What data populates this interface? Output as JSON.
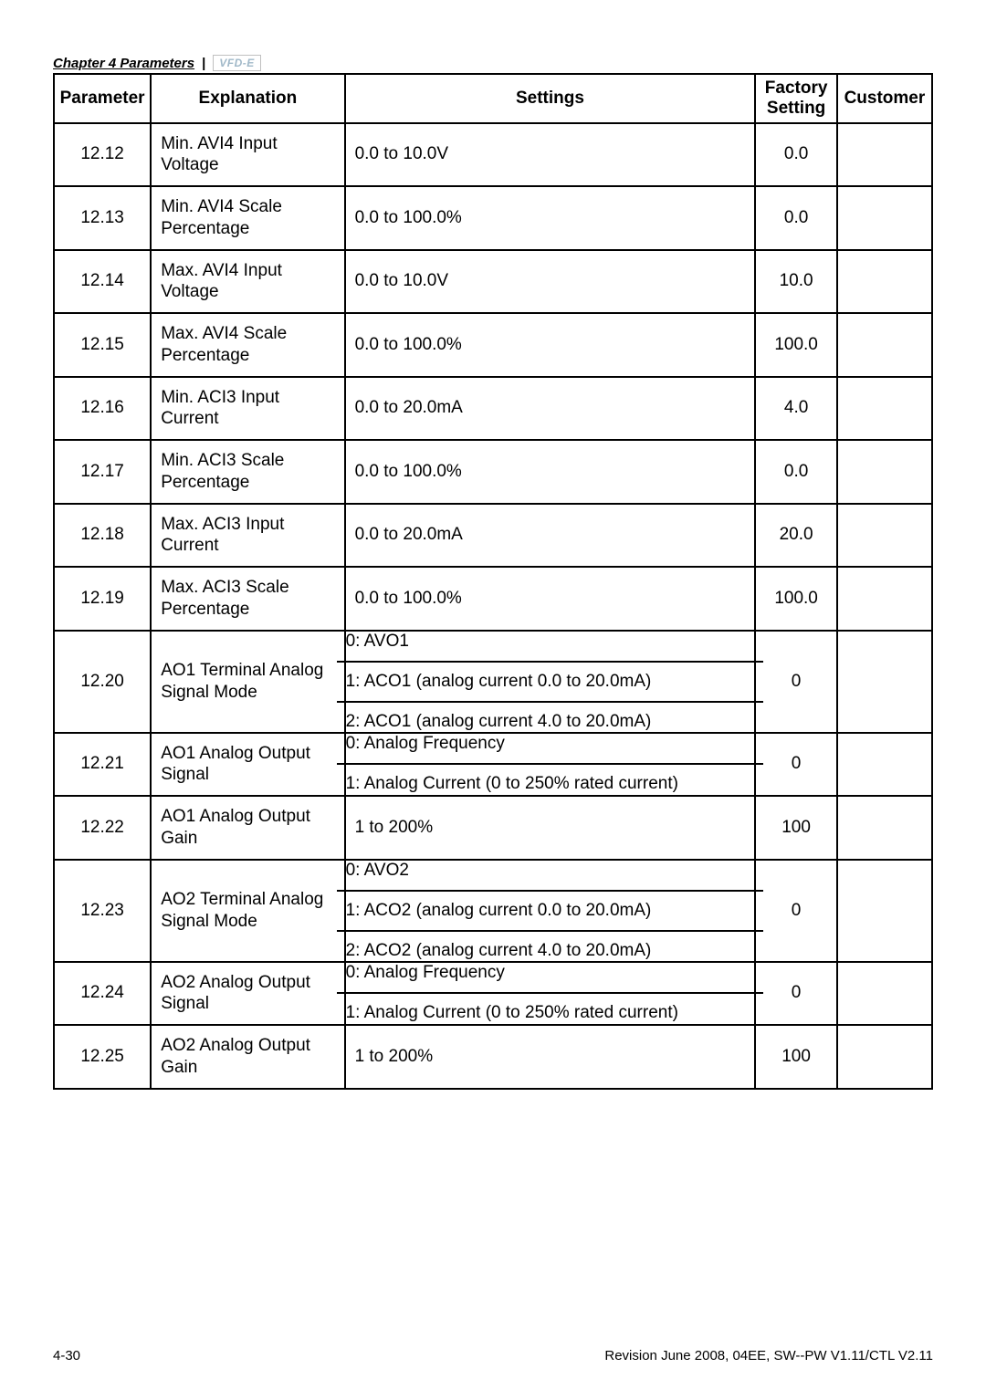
{
  "header": {
    "chapter": "Chapter 4 Parameters",
    "sep": "|",
    "logo": "VFD-E"
  },
  "columns": {
    "parameter": "Parameter",
    "explanation": "Explanation",
    "settings": "Settings",
    "factory_line1": "Factory",
    "factory_line2": "Setting",
    "customer": "Customer"
  },
  "rows": [
    {
      "param": "12.12",
      "expl": "Min. AVI4 Input Voltage",
      "settings": [
        "0.0 to 10.0V"
      ],
      "factory": "0.0"
    },
    {
      "param": "12.13",
      "expl": "Min. AVI4 Scale Percentage",
      "settings": [
        "0.0 to 100.0%"
      ],
      "factory": "0.0"
    },
    {
      "param": "12.14",
      "expl": "Max. AVI4 Input Voltage",
      "settings": [
        "0.0 to 10.0V"
      ],
      "factory": "10.0"
    },
    {
      "param": "12.15",
      "expl": "Max. AVI4 Scale Percentage",
      "settings": [
        "0.0 to 100.0%"
      ],
      "factory": "100.0"
    },
    {
      "param": "12.16",
      "expl": "Min. ACI3 Input Current",
      "settings": [
        "0.0 to 20.0mA"
      ],
      "factory": "4.0"
    },
    {
      "param": "12.17",
      "expl": "Min. ACI3 Scale Percentage",
      "settings": [
        "0.0 to 100.0%"
      ],
      "factory": "0.0"
    },
    {
      "param": "12.18",
      "expl": "Max. ACI3 Input Current",
      "settings": [
        "0.0 to 20.0mA"
      ],
      "factory": "20.0"
    },
    {
      "param": "12.19",
      "expl": "Max. ACI3 Scale Percentage",
      "settings": [
        "0.0 to 100.0%"
      ],
      "factory": "100.0"
    },
    {
      "param": "12.20",
      "expl": "AO1 Terminal Analog Signal Mode",
      "settings": [
        "0: AVO1",
        "1: ACO1 (analog current 0.0 to 20.0mA)",
        "2: ACO1 (analog current 4.0 to 20.0mA)"
      ],
      "factory": "0"
    },
    {
      "param": "12.21",
      "expl": "AO1 Analog Output Signal",
      "settings": [
        "0: Analog Frequency",
        "1: Analog Current (0 to 250% rated current)"
      ],
      "factory": "0"
    },
    {
      "param": "12.22",
      "expl": "AO1 Analog Output Gain",
      "settings": [
        "1 to 200%"
      ],
      "factory": "100"
    },
    {
      "param": "12.23",
      "expl": "AO2 Terminal Analog Signal Mode",
      "settings": [
        "0: AVO2",
        "1: ACO2 (analog current 0.0 to 20.0mA)",
        "2: ACO2 (analog current 4.0 to 20.0mA)"
      ],
      "factory": "0"
    },
    {
      "param": "12.24",
      "expl": "AO2 Analog Output Signal",
      "settings": [
        "0: Analog Frequency",
        "1: Analog Current (0 to 250% rated current)"
      ],
      "factory": "0"
    },
    {
      "param": "12.25",
      "expl": "AO2 Analog Output Gain",
      "settings": [
        "1 to 200%"
      ],
      "factory": "100"
    }
  ],
  "footer": {
    "left": "4-30",
    "right": "Revision June 2008, 04EE, SW--PW V1.11/CTL V2.11"
  }
}
